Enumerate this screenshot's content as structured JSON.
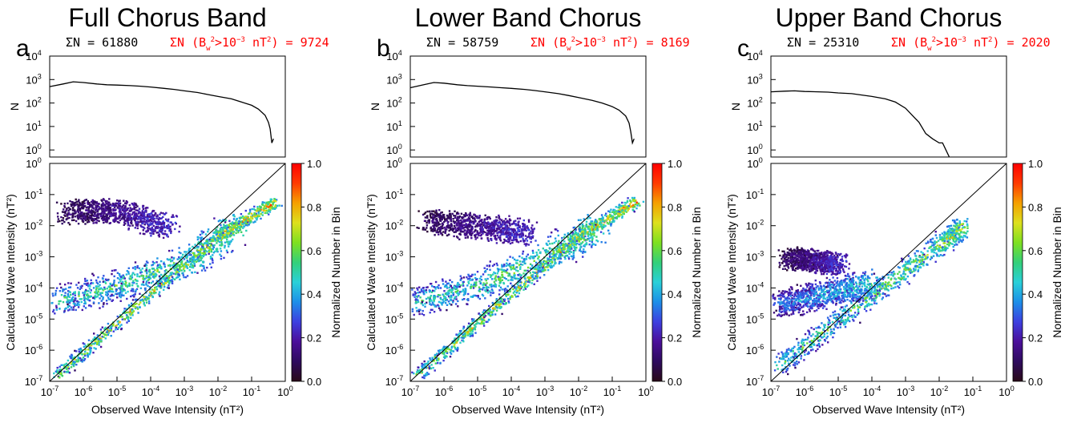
{
  "colors": {
    "line": "#000000",
    "highlight": "#ff0000",
    "colorbar_stops": [
      "#2a0a18",
      "#2e0b5e",
      "#4b0f9a",
      "#3d3fe0",
      "#1d8fe8",
      "#2ad0d8",
      "#33d07a",
      "#7ee020",
      "#dde01e",
      "#f5a000",
      "#ff3b00",
      "#ff0000"
    ]
  },
  "chart_data": [
    {
      "type": "line+heatmap",
      "panel_letter": "a",
      "title": "Full Chorus Band",
      "stats": {
        "total_label": "ΣN = 61880",
        "threshold_parts": [
          "ΣN (B",
          "w",
          "2",
          ">10",
          "−3",
          " nT",
          "2",
          ") = 9724"
        ]
      },
      "histogram": {
        "ylabel": "N",
        "y_scale": "log",
        "ylim": [
          0.5,
          10000
        ],
        "yticks": [
          [
            "10",
            "0"
          ],
          [
            "10",
            "1"
          ],
          [
            "10",
            "2"
          ],
          [
            "10",
            "3"
          ],
          [
            "10",
            "4"
          ]
        ],
        "x_log10": [
          -7.0,
          -6.6,
          -6.3,
          -6.0,
          -5.6,
          -5.3,
          -5.0,
          -4.6,
          -4.3,
          -4.0,
          -3.6,
          -3.3,
          -3.0,
          -2.6,
          -2.3,
          -2.0,
          -1.6,
          -1.3,
          -1.0,
          -0.8,
          -0.6,
          -0.5,
          -0.45,
          -0.4,
          -0.35
        ],
        "counts": [
          500,
          650,
          800,
          750,
          650,
          600,
          580,
          550,
          520,
          480,
          420,
          380,
          330,
          280,
          230,
          190,
          150,
          110,
          80,
          55,
          30,
          15,
          8,
          2,
          3
        ]
      },
      "heatmap": {
        "xlabel": "Observed Wave Intensity (nT²)",
        "ylabel": "Calculated Wave Intensity (nT²)",
        "x_scale": "log",
        "y_scale": "log",
        "xlim": [
          1e-07,
          1
        ],
        "ylim": [
          1e-07,
          1
        ],
        "xticks": [
          [
            "10",
            "-7"
          ],
          [
            "10",
            "-6"
          ],
          [
            "10",
            "-5"
          ],
          [
            "10",
            "-4"
          ],
          [
            "10",
            "-3"
          ],
          [
            "10",
            "-2"
          ],
          [
            "10",
            "-1"
          ],
          [
            "10",
            "0"
          ]
        ],
        "yticks": [
          [
            "10",
            "-7"
          ],
          [
            "10",
            "-6"
          ],
          [
            "10",
            "-5"
          ],
          [
            "10",
            "-4"
          ],
          [
            "10",
            "-3"
          ],
          [
            "10",
            "-2"
          ],
          [
            "10",
            "-1"
          ],
          [
            "10",
            "0"
          ]
        ],
        "diagonal": "y = x",
        "clusters": [
          {
            "x_log10": [
              -6.8,
              -4.5,
              -2.0,
              -0.3
            ],
            "y_log10": [
              -6.8,
              -4.6,
              -2.3,
              -1.2
            ],
            "spread": 0.22,
            "peak": 0.75
          },
          {
            "x_log10": [
              -6.8,
              -5.0,
              -3.0,
              -1.5
            ],
            "y_log10": [
              -4.4,
              -3.9,
              -3.2,
              -2.0
            ],
            "spread": 0.55,
            "peak": 0.55
          },
          {
            "x_log10": [
              -6.5,
              -5.0,
              -3.5
            ],
            "y_log10": [
              -1.5,
              -1.5,
              -2.0
            ],
            "spread": 0.45,
            "peak": 0.05
          }
        ]
      },
      "colorbar": {
        "label": "Normalized Number in Bin",
        "range": [
          0.0,
          1.0
        ],
        "ticks": [
          "0.0",
          "0.2",
          "0.4",
          "0.6",
          "0.8",
          "1.0"
        ]
      }
    },
    {
      "type": "line+heatmap",
      "panel_letter": "b",
      "title": "Lower Band Chorus",
      "stats": {
        "total_label": "ΣN = 58759",
        "threshold_parts": [
          "ΣN (B",
          "w",
          "2",
          ">10",
          "−3",
          " nT",
          "2",
          ") = 8169"
        ]
      },
      "histogram": {
        "ylabel": "N",
        "y_scale": "log",
        "ylim": [
          0.5,
          10000
        ],
        "yticks": [
          [
            "10",
            "0"
          ],
          [
            "10",
            "1"
          ],
          [
            "10",
            "2"
          ],
          [
            "10",
            "3"
          ],
          [
            "10",
            "4"
          ]
        ],
        "x_log10": [
          -7.0,
          -6.6,
          -6.3,
          -6.0,
          -5.6,
          -5.3,
          -5.0,
          -4.6,
          -4.3,
          -4.0,
          -3.6,
          -3.3,
          -3.0,
          -2.6,
          -2.3,
          -2.0,
          -1.6,
          -1.3,
          -1.0,
          -0.8,
          -0.6,
          -0.5,
          -0.45,
          -0.4,
          -0.35
        ],
        "counts": [
          450,
          600,
          750,
          700,
          600,
          550,
          520,
          480,
          450,
          420,
          380,
          340,
          300,
          250,
          210,
          170,
          130,
          100,
          70,
          50,
          28,
          14,
          6,
          2,
          3
        ]
      },
      "heatmap": {
        "xlabel": "Observed Wave Intensity (nT²)",
        "ylabel": "Calculated Wave Intensity (nT²)",
        "x_scale": "log",
        "y_scale": "log",
        "xlim": [
          1e-07,
          1
        ],
        "ylim": [
          1e-07,
          1
        ],
        "xticks": [
          [
            "10",
            "-7"
          ],
          [
            "10",
            "-6"
          ],
          [
            "10",
            "-5"
          ],
          [
            "10",
            "-4"
          ],
          [
            "10",
            "-3"
          ],
          [
            "10",
            "-2"
          ],
          [
            "10",
            "-1"
          ],
          [
            "10",
            "0"
          ]
        ],
        "yticks": [
          [
            "10",
            "-7"
          ],
          [
            "10",
            "-6"
          ],
          [
            "10",
            "-5"
          ],
          [
            "10",
            "-4"
          ],
          [
            "10",
            "-3"
          ],
          [
            "10",
            "-2"
          ],
          [
            "10",
            "-1"
          ],
          [
            "10",
            "0"
          ]
        ],
        "diagonal": "y = x",
        "clusters": [
          {
            "x_log10": [
              -6.8,
              -4.5,
              -2.0,
              -0.3
            ],
            "y_log10": [
              -6.8,
              -4.6,
              -2.3,
              -1.2
            ],
            "spread": 0.22,
            "peak": 0.75
          },
          {
            "x_log10": [
              -6.8,
              -5.0,
              -3.0,
              -1.5
            ],
            "y_log10": [
              -4.4,
              -3.9,
              -3.0,
              -2.0
            ],
            "spread": 0.55,
            "peak": 0.55
          },
          {
            "x_log10": [
              -6.5,
              -5.0,
              -3.5
            ],
            "y_log10": [
              -1.8,
              -2.0,
              -2.2
            ],
            "spread": 0.45,
            "peak": 0.05
          }
        ]
      },
      "colorbar": {
        "label": "Normalized Number in Bin",
        "range": [
          0.0,
          1.0
        ],
        "ticks": [
          "0.0",
          "0.2",
          "0.4",
          "0.6",
          "0.8",
          "1.0"
        ]
      }
    },
    {
      "type": "line+heatmap",
      "panel_letter": "c",
      "title": "Upper Band Chorus",
      "stats": {
        "total_label": "ΣN = 25310",
        "threshold_parts": [
          "ΣN (B",
          "w",
          "2",
          ">10",
          "−3",
          " nT",
          "2",
          ") = 2020"
        ]
      },
      "histogram": {
        "ylabel": "N",
        "y_scale": "log",
        "ylim": [
          0.5,
          10000
        ],
        "yticks": [
          [
            "10",
            "0"
          ],
          [
            "10",
            "1"
          ],
          [
            "10",
            "2"
          ],
          [
            "10",
            "3"
          ],
          [
            "10",
            "4"
          ]
        ],
        "x_log10": [
          -7.0,
          -6.6,
          -6.3,
          -6.0,
          -5.6,
          -5.3,
          -5.0,
          -4.6,
          -4.3,
          -4.0,
          -3.6,
          -3.3,
          -3.0,
          -2.8,
          -2.6,
          -2.4,
          -2.2,
          -2.0,
          -1.9,
          -1.8,
          -1.7
        ],
        "counts": [
          300,
          320,
          330,
          310,
          300,
          290,
          270,
          250,
          220,
          190,
          150,
          110,
          60,
          30,
          15,
          5,
          3,
          2,
          2,
          1,
          0.5
        ]
      },
      "heatmap": {
        "xlabel": "Observed Wave Intensity (nT²)",
        "ylabel": "Calculated Wave Intensity (nT²)",
        "x_scale": "log",
        "y_scale": "log",
        "xlim": [
          1e-07,
          1
        ],
        "ylim": [
          1e-07,
          1
        ],
        "xticks": [
          [
            "10",
            "-7"
          ],
          [
            "10",
            "-6"
          ],
          [
            "10",
            "-5"
          ],
          [
            "10",
            "-4"
          ],
          [
            "10",
            "-3"
          ],
          [
            "10",
            "-2"
          ],
          [
            "10",
            "-1"
          ],
          [
            "10",
            "0"
          ]
        ],
        "yticks": [
          [
            "10",
            "-7"
          ],
          [
            "10",
            "-6"
          ],
          [
            "10",
            "-5"
          ],
          [
            "10",
            "-4"
          ],
          [
            "10",
            "-3"
          ],
          [
            "10",
            "-2"
          ],
          [
            "10",
            "-1"
          ],
          [
            "10",
            "0"
          ]
        ],
        "diagonal": "y = x",
        "clusters": [
          {
            "x_log10": [
              -6.8,
              -5.0,
              -3.5,
              -2.0,
              -1.3
            ],
            "y_log10": [
              -6.5,
              -5.0,
              -3.8,
              -2.6,
              -2.0
            ],
            "spread": 0.35,
            "peak": 0.6
          },
          {
            "x_log10": [
              -6.8,
              -5.5,
              -4.0
            ],
            "y_log10": [
              -4.5,
              -4.2,
              -3.8
            ],
            "spread": 0.5,
            "peak": 0.35
          },
          {
            "x_log10": [
              -6.5,
              -5.0
            ],
            "y_log10": [
              -3.0,
              -3.2
            ],
            "spread": 0.4,
            "peak": 0.05
          }
        ]
      },
      "colorbar": {
        "label": "Normalized Number in Bin",
        "range": [
          0.0,
          1.0
        ],
        "ticks": [
          "0.0",
          "0.2",
          "0.4",
          "0.6",
          "0.8",
          "1.0"
        ]
      }
    }
  ]
}
